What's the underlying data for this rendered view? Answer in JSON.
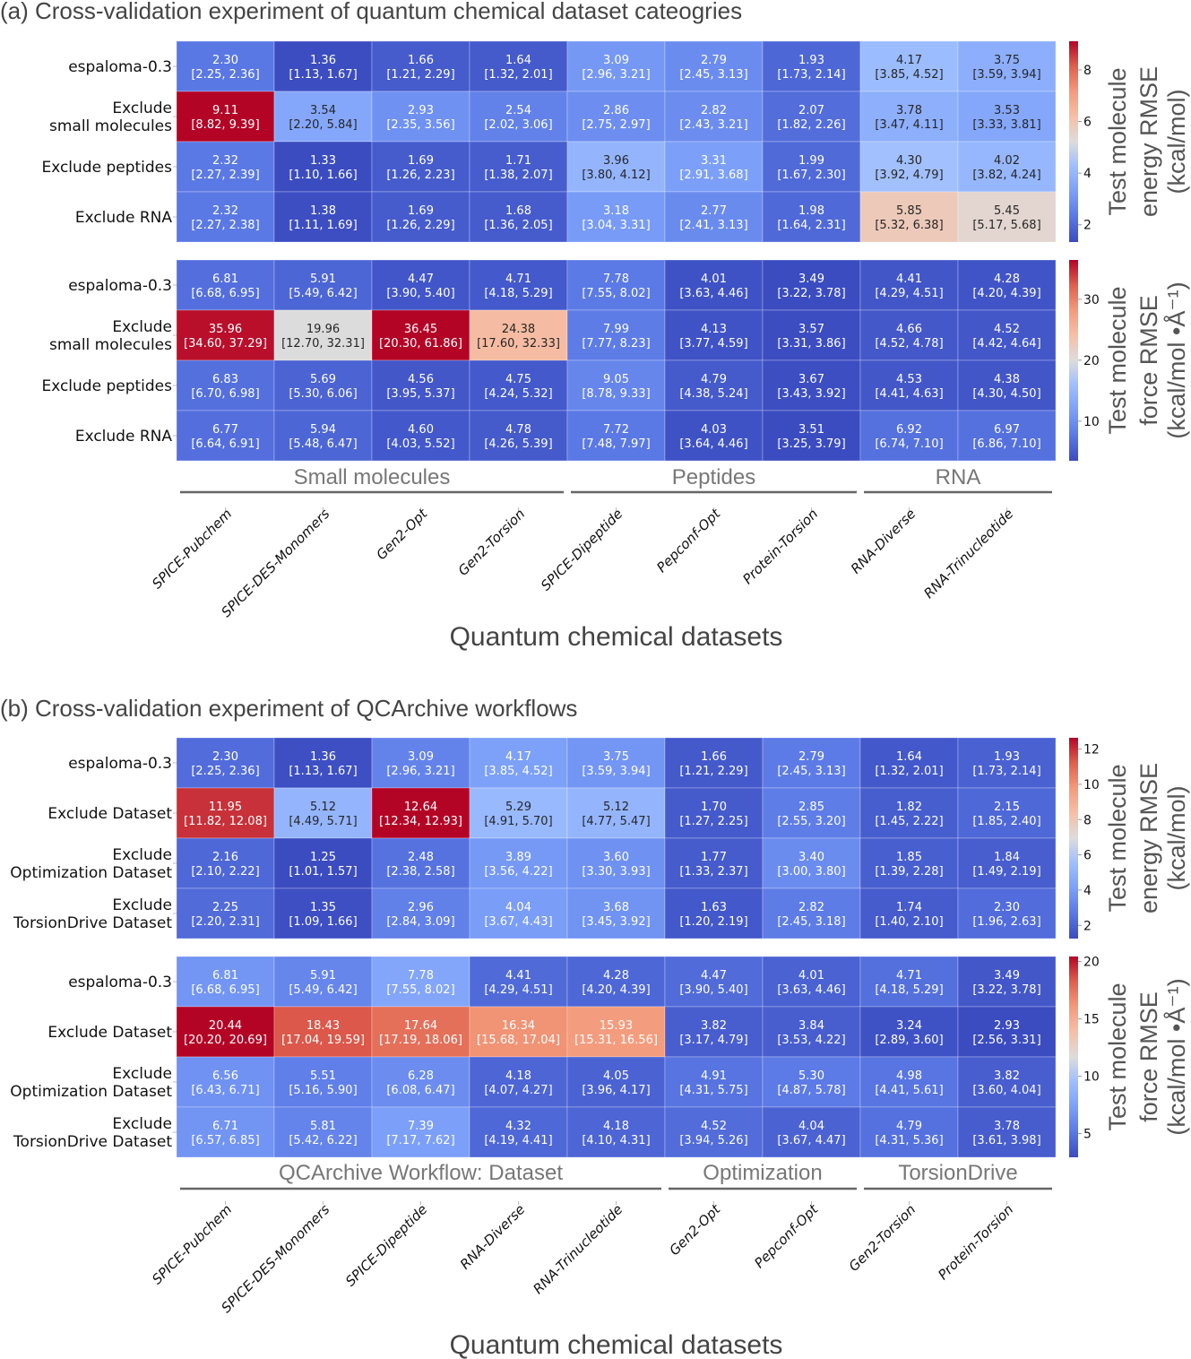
{
  "chart_data": [
    {
      "type": "heatmap",
      "panel": "a",
      "title": "(a) Cross-validation experiment of quantum chemical dataset cateogries",
      "xlabel": "Quantum chemical datasets",
      "columns": [
        "SPICE-Pubchem",
        "SPICE-DES-Monomers",
        "Gen2-Opt",
        "Gen2-Torsion",
        "SPICE-Dipeptide",
        "Pepconf-Opt",
        "Protein-Torsion",
        "RNA-Diverse",
        "RNA-Trinucleotide"
      ],
      "groups": [
        {
          "label": "Small molecules",
          "span": 4
        },
        {
          "label": "Peptides",
          "span": 3
        },
        {
          "label": "RNA",
          "span": 2
        }
      ],
      "heatmaps": [
        {
          "name": "energy",
          "rows": [
            "espaloma-0.3",
            "Exclude\nsmall molecules",
            "Exclude peptides",
            "Exclude RNA"
          ],
          "colorbar": {
            "label": [
              "Test molecule",
              "energy RMSE",
              "(kcal/mol)"
            ],
            "range": [
              1.33,
              9.11
            ],
            "ticks": [
              2,
              4,
              6,
              8
            ],
            "cmap": "coolwarm"
          },
          "values": [
            [
              2.3,
              1.36,
              1.66,
              1.64,
              3.09,
              2.79,
              1.93,
              4.17,
              3.75
            ],
            [
              9.11,
              3.54,
              2.93,
              2.54,
              2.86,
              2.82,
              2.07,
              3.78,
              3.53
            ],
            [
              2.32,
              1.33,
              1.69,
              1.71,
              3.96,
              3.31,
              1.99,
              4.3,
              4.02
            ],
            [
              2.32,
              1.38,
              1.69,
              1.68,
              3.18,
              2.77,
              1.98,
              5.85,
              5.45
            ]
          ],
          "ci": [
            [
              "[2.25, 2.36]",
              "[1.13, 1.67]",
              "[1.21, 2.29]",
              "[1.32, 2.01]",
              "[2.96, 3.21]",
              "[2.45, 3.13]",
              "[1.73, 2.14]",
              "[3.85, 4.52]",
              "[3.59, 3.94]"
            ],
            [
              "[8.82, 9.39]",
              "[2.20, 5.84]",
              "[2.35, 3.56]",
              "[2.02, 3.06]",
              "[2.75, 2.97]",
              "[2.43, 3.21]",
              "[1.82, 2.26]",
              "[3.47, 4.11]",
              "[3.33, 3.81]"
            ],
            [
              "[2.27, 2.39]",
              "[1.10, 1.66]",
              "[1.26, 2.23]",
              "[1.38, 2.07]",
              "[3.80, 4.12]",
              "[2.91, 3.68]",
              "[1.67, 2.30]",
              "[3.92, 4.79]",
              "[3.82, 4.24]"
            ],
            [
              "[2.27, 2.38]",
              "[1.11, 1.69]",
              "[1.26, 2.29]",
              "[1.36, 2.05]",
              "[3.04, 3.31]",
              "[2.41, 3.13]",
              "[1.64, 2.31]",
              "[5.32, 6.38]",
              "[5.17, 5.68]"
            ]
          ]
        },
        {
          "name": "force",
          "rows": [
            "espaloma-0.3",
            "Exclude\nsmall molecules",
            "Exclude peptides",
            "Exclude RNA"
          ],
          "colorbar": {
            "label": [
              "Test molecule",
              "force RMSE",
              "(kcal/mol •Å⁻¹)"
            ],
            "range": [
              3.49,
              36.45
            ],
            "ticks": [
              10,
              20,
              30
            ],
            "cmap": "coolwarm"
          },
          "values": [
            [
              6.81,
              5.91,
              4.47,
              4.71,
              7.78,
              4.01,
              3.49,
              4.41,
              4.28
            ],
            [
              35.96,
              19.96,
              36.45,
              24.38,
              7.99,
              4.13,
              3.57,
              4.66,
              4.52
            ],
            [
              6.83,
              5.69,
              4.56,
              4.75,
              9.05,
              4.79,
              3.67,
              4.53,
              4.38
            ],
            [
              6.77,
              5.94,
              4.6,
              4.78,
              7.72,
              4.03,
              3.51,
              6.92,
              6.97
            ]
          ],
          "ci": [
            [
              "[6.68, 6.95]",
              "[5.49, 6.42]",
              "[3.90, 5.40]",
              "[4.18, 5.29]",
              "[7.55, 8.02]",
              "[3.63, 4.46]",
              "[3.22, 3.78]",
              "[4.29, 4.51]",
              "[4.20, 4.39]"
            ],
            [
              "[34.60, 37.29]",
              "[12.70, 32.31]",
              "[20.30, 61.86]",
              "[17.60, 32.33]",
              "[7.77, 8.23]",
              "[3.77, 4.59]",
              "[3.31, 3.86]",
              "[4.52, 4.78]",
              "[4.42, 4.64]"
            ],
            [
              "[6.70, 6.98]",
              "[5.30, 6.06]",
              "[3.95, 5.37]",
              "[4.24, 5.32]",
              "[8.78, 9.33]",
              "[4.38, 5.24]",
              "[3.43, 3.92]",
              "[4.41, 4.63]",
              "[4.30, 4.50]"
            ],
            [
              "[6.64, 6.91]",
              "[5.48, 6.47]",
              "[4.03, 5.52]",
              "[4.26, 5.39]",
              "[7.48, 7.97]",
              "[3.64, 4.46]",
              "[3.25, 3.79]",
              "[6.74, 7.10]",
              "[6.86, 7.10]"
            ]
          ]
        }
      ]
    },
    {
      "type": "heatmap",
      "panel": "b",
      "title": "(b) Cross-validation experiment of QCArchive workflows",
      "xlabel": "Quantum chemical datasets",
      "columns": [
        "SPICE-Pubchem",
        "SPICE-DES-Monomers",
        "SPICE-Dipeptide",
        "RNA-Diverse",
        "RNA-Trinucleotide",
        "Gen2-Opt",
        "Pepconf-Opt",
        "Gen2-Torsion",
        "Protein-Torsion"
      ],
      "groups": [
        {
          "label": "QCArchive Workflow: Dataset",
          "span": 5
        },
        {
          "label": "Optimization",
          "span": 2
        },
        {
          "label": "TorsionDrive",
          "span": 2
        }
      ],
      "heatmaps": [
        {
          "name": "energy",
          "rows": [
            "espaloma-0.3",
            "Exclude Dataset",
            "Exclude\nOptimization Dataset",
            "Exclude\nTorsionDrive Dataset"
          ],
          "colorbar": {
            "label": [
              "Test molecule",
              "energy RMSE",
              "(kcal/mol)"
            ],
            "range": [
              1.25,
              12.64
            ],
            "ticks": [
              2,
              4,
              6,
              8,
              10,
              12
            ],
            "cmap": "coolwarm"
          },
          "values": [
            [
              2.3,
              1.36,
              3.09,
              4.17,
              3.75,
              1.66,
              2.79,
              1.64,
              1.93
            ],
            [
              11.95,
              5.12,
              12.64,
              5.29,
              5.12,
              1.7,
              2.85,
              1.82,
              2.15
            ],
            [
              2.16,
              1.25,
              2.48,
              3.89,
              3.6,
              1.77,
              3.4,
              1.85,
              1.84
            ],
            [
              2.25,
              1.35,
              2.96,
              4.04,
              3.68,
              1.63,
              2.82,
              1.74,
              2.3
            ]
          ],
          "ci": [
            [
              "[2.25, 2.36]",
              "[1.13, 1.67]",
              "[2.96, 3.21]",
              "[3.85, 4.52]",
              "[3.59, 3.94]",
              "[1.21, 2.29]",
              "[2.45, 3.13]",
              "[1.32, 2.01]",
              "[1.73, 2.14]"
            ],
            [
              "[11.82, 12.08]",
              "[4.49, 5.71]",
              "[12.34, 12.93]",
              "[4.91, 5.70]",
              "[4.77, 5.47]",
              "[1.27, 2.25]",
              "[2.55, 3.20]",
              "[1.45, 2.22]",
              "[1.85, 2.40]"
            ],
            [
              "[2.10, 2.22]",
              "[1.01, 1.57]",
              "[2.38, 2.58]",
              "[3.56, 4.22]",
              "[3.30, 3.93]",
              "[1.33, 2.37]",
              "[3.00, 3.80]",
              "[1.39, 2.28]",
              "[1.49, 2.19]"
            ],
            [
              "[2.20, 2.31]",
              "[1.09, 1.66]",
              "[2.84, 3.09]",
              "[3.67, 4.43]",
              "[3.45, 3.92]",
              "[1.20, 2.19]",
              "[2.45, 3.18]",
              "[1.40, 2.10]",
              "[1.96, 2.63]"
            ]
          ]
        },
        {
          "name": "force",
          "rows": [
            "espaloma-0.3",
            "Exclude Dataset",
            "Exclude\nOptimization Dataset",
            "Exclude\nTorsionDrive Dataset"
          ],
          "colorbar": {
            "label": [
              "Test molecule",
              "force RMSE",
              "(kcal/mol •Å⁻¹)"
            ],
            "range": [
              2.93,
              20.44
            ],
            "ticks": [
              5,
              10,
              15,
              20
            ],
            "cmap": "coolwarm"
          },
          "values": [
            [
              6.81,
              5.91,
              7.78,
              4.41,
              4.28,
              4.47,
              4.01,
              4.71,
              3.49
            ],
            [
              20.44,
              18.43,
              17.64,
              16.34,
              15.93,
              3.82,
              3.84,
              3.24,
              2.93
            ],
            [
              6.56,
              5.51,
              6.28,
              4.18,
              4.05,
              4.91,
              5.3,
              4.98,
              3.82
            ],
            [
              6.71,
              5.81,
              7.39,
              4.32,
              4.18,
              4.52,
              4.04,
              4.79,
              3.78
            ]
          ],
          "ci": [
            [
              "[6.68, 6.95]",
              "[5.49, 6.42]",
              "[7.55, 8.02]",
              "[4.29, 4.51]",
              "[4.20, 4.39]",
              "[3.90, 5.40]",
              "[3.63, 4.46]",
              "[4.18, 5.29]",
              "[3.22, 3.78]"
            ],
            [
              "[20.20, 20.69]",
              "[17.04, 19.59]",
              "[17.19, 18.06]",
              "[15.68, 17.04]",
              "[15.31, 16.56]",
              "[3.17, 4.79]",
              "[3.53, 4.22]",
              "[2.89, 3.60]",
              "[2.56, 3.31]"
            ],
            [
              "[6.43, 6.71]",
              "[5.16, 5.90]",
              "[6.08, 6.47]",
              "[4.07, 4.27]",
              "[3.96, 4.17]",
              "[4.31, 5.75]",
              "[4.87, 5.78]",
              "[4.41, 5.61]",
              "[3.60, 4.04]"
            ],
            [
              "[6.57, 6.85]",
              "[5.42, 6.22]",
              "[7.17, 7.62]",
              "[4.19, 4.41]",
              "[4.10, 4.31]",
              "[3.94, 5.26]",
              "[3.67, 4.47]",
              "[4.31, 5.36]",
              "[3.61, 3.98]"
            ]
          ]
        }
      ]
    }
  ]
}
